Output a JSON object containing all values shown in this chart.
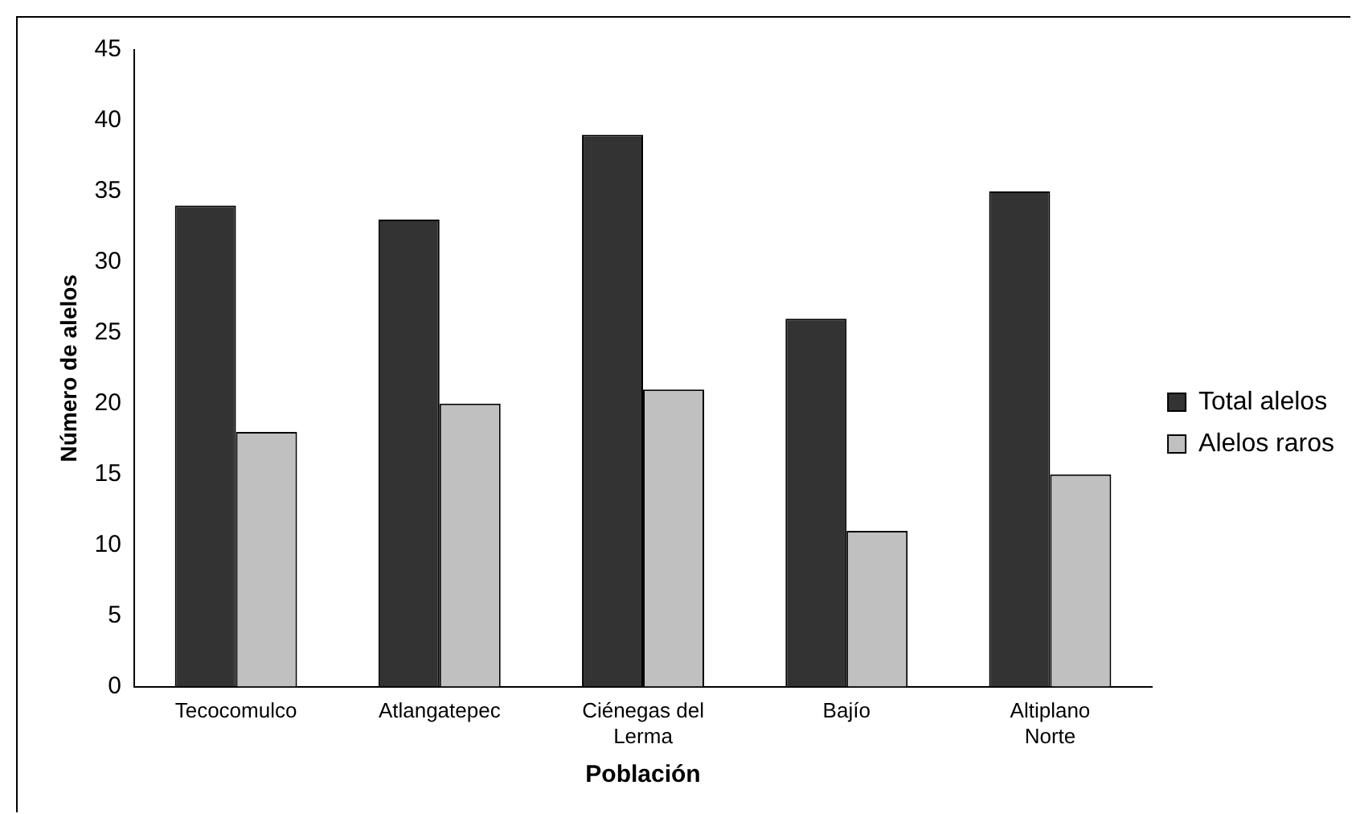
{
  "chart_data": {
    "type": "bar",
    "xlabel": "Población",
    "ylabel": "Número de alelos",
    "categories": [
      "Tecocomulco",
      "Atlangatepec",
      "Ciénegas del Lerma",
      "Bajío",
      "Altiplano Norte"
    ],
    "series": [
      {
        "name": "Total alelos",
        "color": "#333333",
        "values": [
          34,
          33,
          39,
          26,
          35
        ]
      },
      {
        "name": "Alelos raros",
        "color": "#c0c0c0",
        "values": [
          18,
          20,
          21,
          11,
          15
        ]
      }
    ],
    "ylim": [
      0,
      45
    ],
    "yticks": [
      0,
      5,
      10,
      15,
      20,
      25,
      30,
      35,
      40,
      45
    ],
    "grid": false,
    "legend": "right"
  }
}
